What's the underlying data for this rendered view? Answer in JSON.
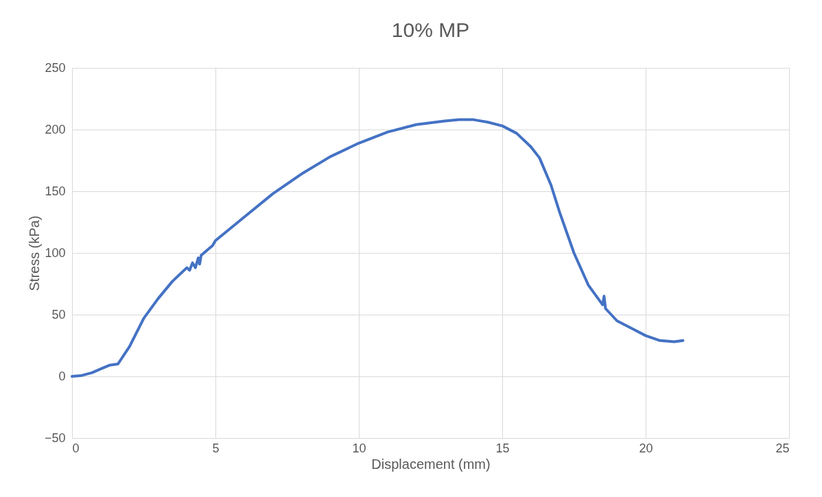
{
  "chart_data": {
    "type": "line",
    "title": "10% MP",
    "xlabel": "Displacement (mm)",
    "ylabel": "Stress (kPa)",
    "series": [
      {
        "color": "#4472c4",
        "x": [
          0,
          0.3,
          0.7,
          1.0,
          1.3,
          1.6,
          2.0,
          2.5,
          3.0,
          3.5,
          4.0,
          4.1,
          4.2,
          4.3,
          4.4,
          4.45,
          4.5,
          4.8,
          4.9,
          5,
          6,
          7,
          8,
          9,
          10,
          11,
          12,
          13,
          13.5,
          14,
          14.5,
          15,
          15.5,
          16,
          16.3,
          16.7,
          17,
          17.5,
          18,
          18.5,
          18.55,
          18.6,
          19,
          19.5,
          20,
          20.5,
          21,
          21.3
        ],
        "values": [
          0,
          0.5,
          3,
          6,
          9,
          10,
          24,
          47,
          63,
          77,
          88,
          86,
          92,
          88,
          96,
          91,
          98,
          104,
          106,
          110,
          129,
          148,
          164,
          178,
          189,
          198,
          204,
          207,
          208,
          208,
          206,
          203,
          197,
          186,
          177,
          155,
          133,
          100,
          74,
          58,
          65,
          55,
          45,
          39,
          33,
          29,
          28,
          29
        ]
      }
    ],
    "xlim": [
      0,
      25
    ],
    "xticks": [
      0,
      5,
      10,
      15,
      20,
      25
    ],
    "ylim": [
      -50,
      250
    ],
    "yticks": [
      -50,
      0,
      50,
      100,
      150,
      200,
      250
    ],
    "grid": true,
    "marker": "none",
    "line_style": "solid"
  }
}
